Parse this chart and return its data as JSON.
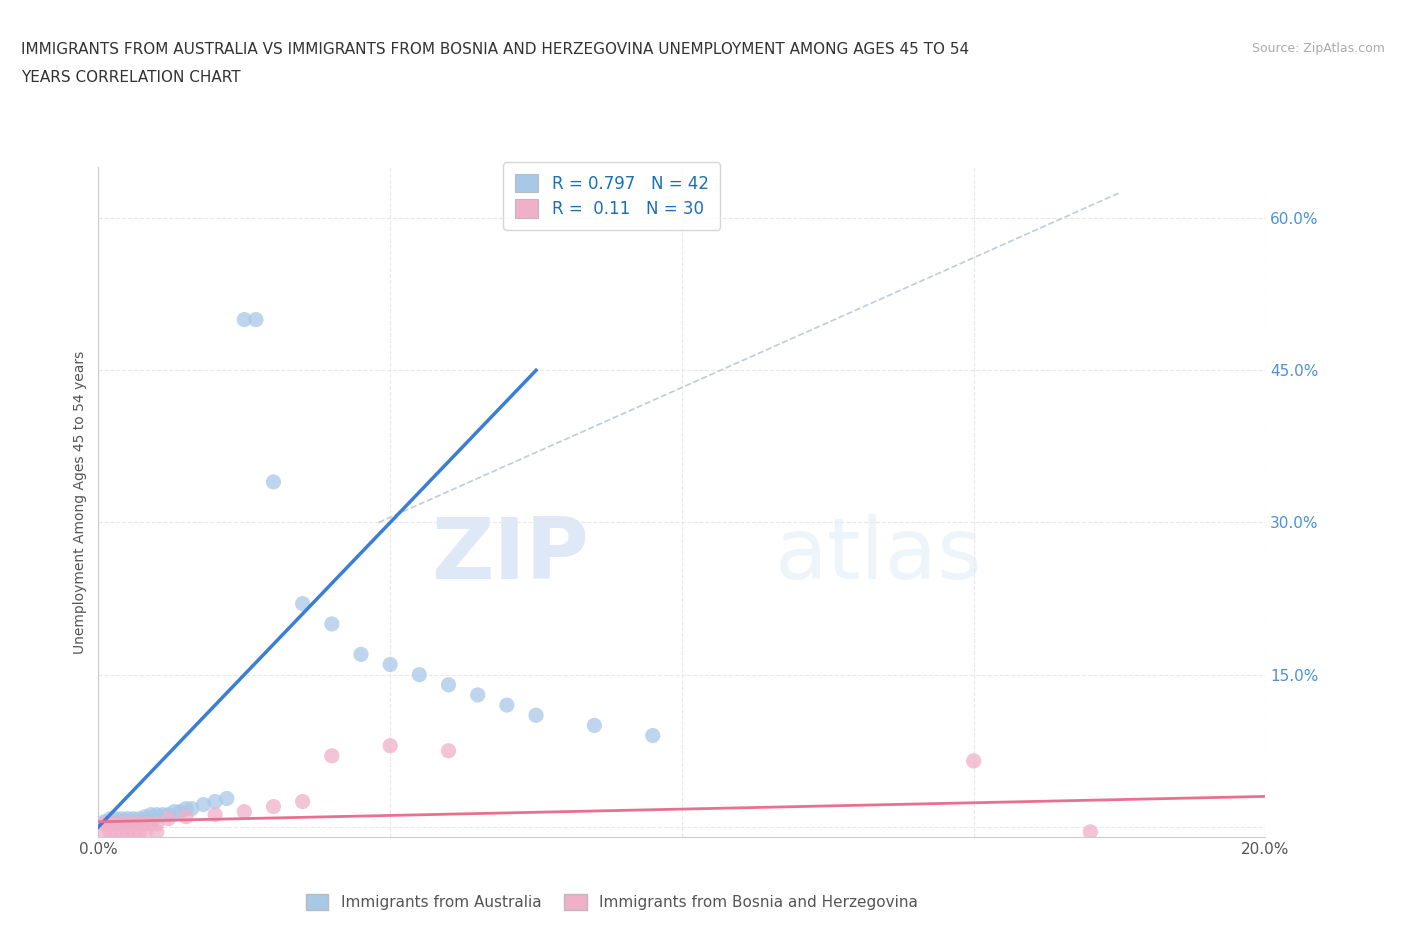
{
  "title_line1": "IMMIGRANTS FROM AUSTRALIA VS IMMIGRANTS FROM BOSNIA AND HERZEGOVINA UNEMPLOYMENT AMONG AGES 45 TO 54",
  "title_line2": "YEARS CORRELATION CHART",
  "source": "Source: ZipAtlas.com",
  "ylabel": "Unemployment Among Ages 45 to 54 years",
  "xlim": [
    0.0,
    0.2
  ],
  "ylim": [
    -0.01,
    0.65
  ],
  "y_ticks": [
    0.0,
    0.15,
    0.3,
    0.45,
    0.6
  ],
  "x_ticks": [
    0.0,
    0.05,
    0.1,
    0.15,
    0.2
  ],
  "australia_color": "#a8c8e8",
  "bosnia_color": "#f0b0c8",
  "australia_R": 0.797,
  "australia_N": 42,
  "bosnia_R": 0.11,
  "bosnia_N": 30,
  "legend_label_australia": "Immigrants from Australia",
  "legend_label_bosnia": "Immigrants from Bosnia and Herzegovina",
  "watermark_zip": "ZIP",
  "watermark_atlas": "atlas",
  "australia_line_color": "#3a7fd5",
  "bosnia_line_color": "#e87090",
  "diagonal_line_color": "#c0ccd8",
  "grid_color": "#e8e8e8",
  "background_color": "#ffffff",
  "australia_points": [
    [
      0.001,
      0.005
    ],
    [
      0.002,
      0.005
    ],
    [
      0.002,
      0.008
    ],
    [
      0.003,
      0.005
    ],
    [
      0.003,
      0.008
    ],
    [
      0.004,
      0.005
    ],
    [
      0.004,
      0.008
    ],
    [
      0.005,
      0.005
    ],
    [
      0.005,
      0.008
    ],
    [
      0.006,
      0.005
    ],
    [
      0.006,
      0.008
    ],
    [
      0.007,
      0.005
    ],
    [
      0.007,
      0.008
    ],
    [
      0.008,
      0.005
    ],
    [
      0.008,
      0.01
    ],
    [
      0.009,
      0.008
    ],
    [
      0.009,
      0.012
    ],
    [
      0.01,
      0.01
    ],
    [
      0.01,
      0.012
    ],
    [
      0.011,
      0.012
    ],
    [
      0.012,
      0.012
    ],
    [
      0.013,
      0.015
    ],
    [
      0.014,
      0.015
    ],
    [
      0.015,
      0.018
    ],
    [
      0.016,
      0.018
    ],
    [
      0.018,
      0.022
    ],
    [
      0.02,
      0.025
    ],
    [
      0.022,
      0.028
    ],
    [
      0.025,
      0.5
    ],
    [
      0.027,
      0.5
    ],
    [
      0.03,
      0.34
    ],
    [
      0.035,
      0.22
    ],
    [
      0.04,
      0.2
    ],
    [
      0.045,
      0.17
    ],
    [
      0.05,
      0.16
    ],
    [
      0.055,
      0.15
    ],
    [
      0.06,
      0.14
    ],
    [
      0.065,
      0.13
    ],
    [
      0.07,
      0.12
    ],
    [
      0.075,
      0.11
    ],
    [
      0.085,
      0.1
    ],
    [
      0.095,
      0.09
    ]
  ],
  "bosnia_points": [
    [
      0.001,
      0.003
    ],
    [
      0.002,
      0.003
    ],
    [
      0.003,
      0.003
    ],
    [
      0.004,
      0.003
    ],
    [
      0.005,
      0.003
    ],
    [
      0.006,
      0.003
    ],
    [
      0.007,
      0.003
    ],
    [
      0.008,
      0.003
    ],
    [
      0.009,
      0.003
    ],
    [
      0.01,
      0.003
    ],
    [
      0.001,
      -0.005
    ],
    [
      0.002,
      -0.005
    ],
    [
      0.003,
      -0.005
    ],
    [
      0.004,
      -0.005
    ],
    [
      0.005,
      -0.005
    ],
    [
      0.006,
      -0.005
    ],
    [
      0.007,
      -0.005
    ],
    [
      0.008,
      -0.005
    ],
    [
      0.01,
      -0.005
    ],
    [
      0.012,
      0.008
    ],
    [
      0.015,
      0.01
    ],
    [
      0.02,
      0.012
    ],
    [
      0.025,
      0.015
    ],
    [
      0.03,
      0.02
    ],
    [
      0.035,
      0.025
    ],
    [
      0.04,
      0.07
    ],
    [
      0.05,
      0.08
    ],
    [
      0.06,
      0.075
    ],
    [
      0.15,
      0.065
    ],
    [
      0.17,
      -0.005
    ]
  ],
  "aus_line_x": [
    0.0,
    0.075
  ],
  "aus_line_y": [
    0.0,
    0.45
  ],
  "bos_line_x": [
    0.0,
    0.2
  ],
  "bos_line_y": [
    0.005,
    0.03
  ],
  "diag_line_x": [
    0.048,
    0.175
  ],
  "diag_line_y": [
    0.3,
    0.625
  ]
}
